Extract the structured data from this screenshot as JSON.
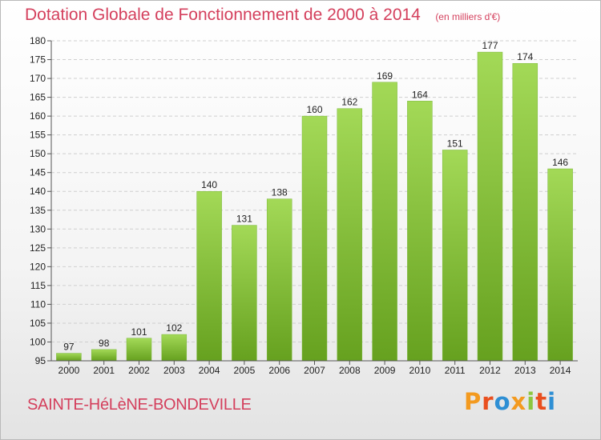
{
  "header": {
    "title": "Dotation Globale de Fonctionnement de 2000 à 2014",
    "unit": "(en milliers d'€)"
  },
  "footer": {
    "commune": "SAINTE-HéLèNE-BONDEVILLE",
    "brand": "Proxiti"
  },
  "colors": {
    "title": "#d43f5c",
    "bar_light": "#a3d957",
    "bar_dark": "#66a11f",
    "grid": "#cfcfcf",
    "logo_letters": [
      "#f39a1f",
      "#e94f1e",
      "#2e8fd4",
      "#f39a1f",
      "#8cc63f",
      "#e94f1e",
      "#2e8fd4"
    ]
  },
  "chart_data": {
    "type": "bar",
    "title": "Dotation Globale de Fonctionnement de 2000 à 2014",
    "subtitle": "(en milliers d'€)",
    "categories": [
      "2000",
      "2001",
      "2002",
      "2003",
      "2004",
      "2005",
      "2006",
      "2007",
      "2008",
      "2009",
      "2010",
      "2011",
      "2012",
      "2013",
      "2014"
    ],
    "values": [
      97,
      98,
      101,
      102,
      140,
      131,
      138,
      160,
      162,
      169,
      164,
      151,
      177,
      174,
      146
    ],
    "xlabel": "",
    "ylabel": "",
    "ylim": [
      95,
      180
    ],
    "yticks": [
      95,
      100,
      105,
      110,
      115,
      120,
      125,
      130,
      135,
      140,
      145,
      150,
      155,
      160,
      165,
      170,
      175,
      180
    ],
    "grid": true,
    "legend": "none",
    "data_labels": true
  }
}
